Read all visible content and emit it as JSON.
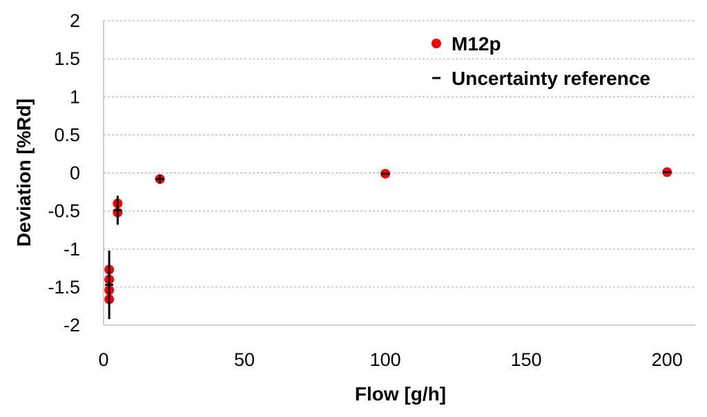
{
  "chart_data": {
    "type": "scatter",
    "xlabel": "Flow [g/h]",
    "ylabel": "Deviation [%Rd]",
    "xlim": [
      0,
      210
    ],
    "ylim": [
      -2,
      2
    ],
    "x_ticks": [
      0,
      50,
      100,
      150,
      200
    ],
    "y_ticks": [
      2,
      1.5,
      1,
      0.5,
      0,
      -0.5,
      -1,
      -1.5,
      -2
    ],
    "x_tick_labels": [
      "0",
      "50",
      "100",
      "150",
      "200"
    ],
    "y_tick_labels": [
      "2",
      "1.5",
      "1",
      "0.5",
      "0",
      "-0.5",
      "-1",
      "-1.5",
      "-2"
    ],
    "grid": "horizontal dashed",
    "legend_position": "top-right",
    "series": [
      {
        "name": "M12p",
        "marker": "circle",
        "color": "#ff0000",
        "points": [
          {
            "x": 2,
            "y": -1.27
          },
          {
            "x": 2,
            "y": -1.4
          },
          {
            "x": 2,
            "y": -1.54
          },
          {
            "x": 2,
            "y": -1.66
          },
          {
            "x": 5,
            "y": -0.4
          },
          {
            "x": 5,
            "y": -0.52
          },
          {
            "x": 20,
            "y": -0.08
          },
          {
            "x": 100,
            "y": -0.01
          },
          {
            "x": 200,
            "y": 0.01
          }
        ]
      },
      {
        "name": "Uncertainty reference",
        "marker": "dash",
        "color": "#000000",
        "points": [
          {
            "x": 2,
            "y": -1.47,
            "err_low": -1.92,
            "err_high": -1.02
          },
          {
            "x": 5,
            "y": -0.49,
            "err_low": -0.68,
            "err_high": -0.3
          },
          {
            "x": 20,
            "y": -0.08,
            "err_low": -0.14,
            "err_high": -0.02
          },
          {
            "x": 100,
            "y": -0.01,
            "err_low": -0.01,
            "err_high": -0.01
          },
          {
            "x": 200,
            "y": 0.01,
            "err_low": 0.01,
            "err_high": 0.01
          }
        ]
      }
    ]
  }
}
